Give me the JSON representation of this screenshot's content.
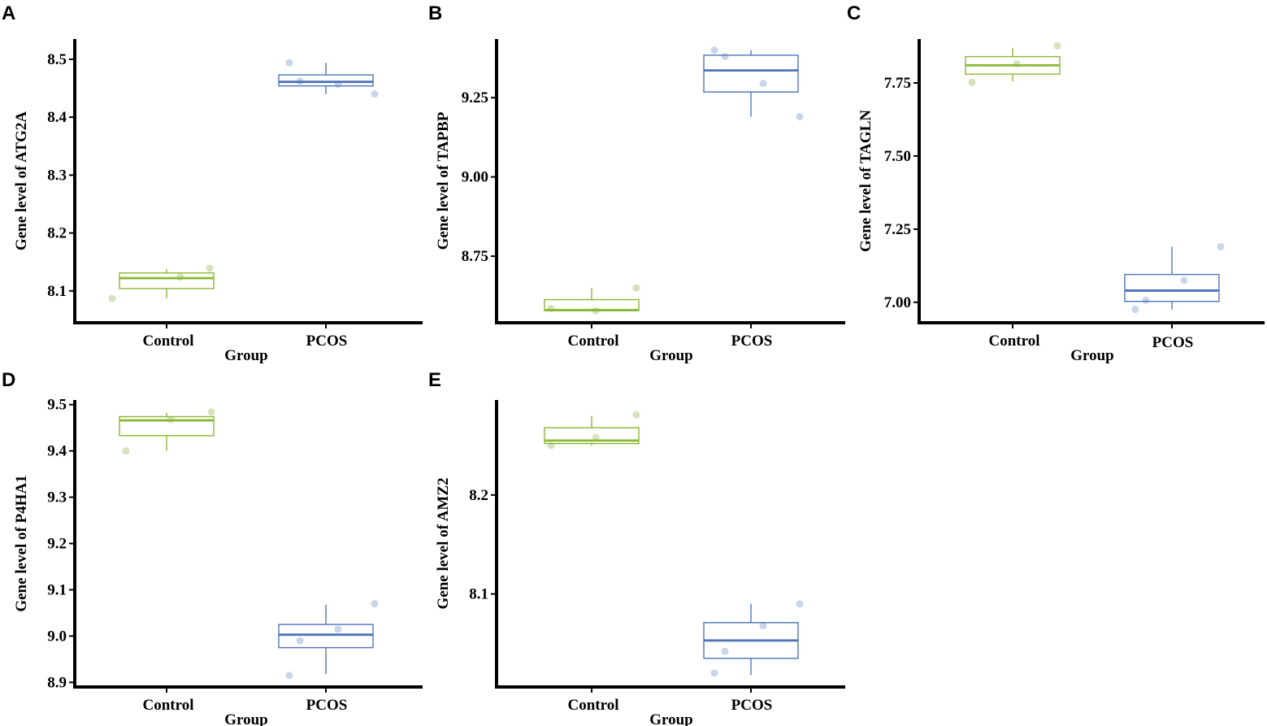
{
  "colors": {
    "control": "#8AB833",
    "pcos": "#4F74B8",
    "control_point": "#D4E2BE",
    "pcos_point": "#C9D5EA",
    "axis": "#000000"
  },
  "chart_data": [
    {
      "panel": "A",
      "type": "box",
      "xlabel": "Group",
      "ylabel": "Gene level of ATG2A",
      "categories": [
        "Control",
        "PCOS"
      ],
      "ylim": [
        8.045,
        8.535
      ],
      "yticks": [
        8.1,
        8.2,
        8.3,
        8.4,
        8.5
      ],
      "ytick_labels": [
        "8.1",
        "8.2",
        "8.3",
        "8.4",
        "8.5"
      ],
      "boxes": [
        {
          "group": "Control",
          "whisker_low": 8.087,
          "q1": 8.104,
          "median": 8.122,
          "q3": 8.131,
          "whisker_high": 8.138,
          "points": [
            8.087,
            8.124,
            8.139
          ]
        },
        {
          "group": "PCOS",
          "whisker_low": 8.44,
          "q1": 8.454,
          "median": 8.461,
          "q3": 8.473,
          "whisker_high": 8.494,
          "points": [
            8.494,
            8.462,
            8.457,
            8.44
          ]
        }
      ]
    },
    {
      "panel": "B",
      "type": "box",
      "xlabel": "Group",
      "ylabel": "Gene level of TAPBP",
      "categories": [
        "Control",
        "PCOS"
      ],
      "ylim": [
        8.54,
        9.435
      ],
      "yticks": [
        8.75,
        9.0,
        9.25
      ],
      "ytick_labels": [
        "8.75",
        "9.00",
        "9.25"
      ],
      "boxes": [
        {
          "group": "Control",
          "whisker_low": 8.575,
          "q1": 8.578,
          "median": 8.58,
          "q3": 8.613,
          "whisker_high": 8.65,
          "points": [
            8.585,
            8.578,
            8.65
          ]
        },
        {
          "group": "PCOS",
          "whisker_low": 9.19,
          "q1": 9.268,
          "median": 9.336,
          "q3": 9.384,
          "whisker_high": 9.4,
          "points": [
            9.4,
            9.38,
            9.295,
            9.19
          ]
        }
      ]
    },
    {
      "panel": "C",
      "type": "box",
      "xlabel": "Group",
      "ylabel": "Gene level of TAGLN",
      "categories": [
        "Control",
        "PCOS"
      ],
      "ylim": [
        6.93,
        7.9
      ],
      "yticks": [
        7.0,
        7.25,
        7.5,
        7.75
      ],
      "ytick_labels": [
        "7.00",
        "7.25",
        "7.50",
        "7.75"
      ],
      "boxes": [
        {
          "group": "Control",
          "whisker_low": 7.755,
          "q1": 7.78,
          "median": 7.81,
          "q3": 7.84,
          "whisker_high": 7.87,
          "points": [
            7.752,
            7.815,
            7.877
          ]
        },
        {
          "group": "PCOS",
          "whisker_low": 6.975,
          "q1": 7.003,
          "median": 7.04,
          "q3": 7.095,
          "whisker_high": 7.19,
          "points": [
            6.976,
            7.007,
            7.075,
            7.19
          ]
        }
      ]
    },
    {
      "panel": "D",
      "type": "box",
      "xlabel": "Group",
      "ylabel": "Gene level of P4HA1",
      "categories": [
        "Control",
        "PCOS"
      ],
      "ylim": [
        8.89,
        9.51
      ],
      "yticks": [
        8.9,
        9.0,
        9.1,
        9.2,
        9.3,
        9.4,
        9.5
      ],
      "ytick_labels": [
        "8.9",
        "9.0",
        "9.1",
        "9.2",
        "9.3",
        "9.4",
        "9.5"
      ],
      "boxes": [
        {
          "group": "Control",
          "whisker_low": 9.4,
          "q1": 9.433,
          "median": 9.466,
          "q3": 9.474,
          "whisker_high": 9.482,
          "points": [
            9.4,
            9.468,
            9.484
          ]
        },
        {
          "group": "PCOS",
          "whisker_low": 8.918,
          "q1": 8.975,
          "median": 9.003,
          "q3": 9.025,
          "whisker_high": 9.068,
          "points": [
            8.915,
            8.99,
            9.015,
            9.07
          ]
        }
      ]
    },
    {
      "panel": "E",
      "type": "box",
      "xlabel": "Group",
      "ylabel": "Gene level of AMZ2",
      "categories": [
        "Control",
        "PCOS"
      ],
      "ylim": [
        8.006,
        8.296
      ],
      "yticks": [
        8.1,
        8.2
      ],
      "ytick_labels": [
        "8.1",
        "8.2"
      ],
      "boxes": [
        {
          "group": "Control",
          "whisker_low": 8.25,
          "q1": 8.252,
          "median": 8.255,
          "q3": 8.268,
          "whisker_high": 8.28,
          "points": [
            8.25,
            8.258,
            8.281
          ]
        },
        {
          "group": "PCOS",
          "whisker_low": 8.018,
          "q1": 8.035,
          "median": 8.053,
          "q3": 8.071,
          "whisker_high": 8.09,
          "points": [
            8.02,
            8.042,
            8.068,
            8.09
          ]
        }
      ]
    }
  ]
}
